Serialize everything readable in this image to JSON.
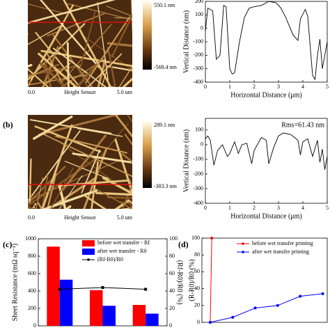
{
  "afm_images": [
    {
      "max_label": "550.1 nm",
      "min_label": "-568.4 nm",
      "x_start": "0.0",
      "x_label": "Height Sensor",
      "x_end": "5.0 um"
    },
    {
      "panel_label": "(b)",
      "max_label": "289.1 nm",
      "min_label": "-383.3 nm",
      "x_start": "0.0",
      "x_label": "Height Sensor",
      "x_end": "5.0 um"
    }
  ],
  "chart_data": [
    {
      "type": "line",
      "xlabel": "Horizontal Distance (μm)",
      "ylabel": "Vertical Distance (nm)",
      "xlim": [
        0,
        5
      ],
      "xticks": [
        0,
        1,
        2,
        3,
        4,
        5
      ],
      "ylim": [
        -400,
        200
      ],
      "yticks": [
        -400,
        -300,
        -200,
        -100,
        0,
        100,
        200
      ],
      "series": [
        {
          "color": "#000000",
          "x": [
            0,
            0.1,
            0.3,
            0.45,
            0.6,
            0.75,
            0.85,
            1.0,
            1.1,
            1.2,
            1.4,
            1.6,
            1.8,
            2.0,
            2.3,
            2.6,
            2.9,
            3.1,
            3.3,
            3.6,
            3.8,
            3.9,
            4.1,
            4.2,
            4.4,
            4.5,
            4.6,
            4.7,
            4.8,
            4.9,
            5.0
          ],
          "values": [
            -20,
            150,
            130,
            -230,
            -200,
            170,
            160,
            -300,
            -340,
            -330,
            -100,
            80,
            150,
            160,
            170,
            200,
            190,
            150,
            80,
            -50,
            -90,
            70,
            140,
            90,
            -350,
            -380,
            -200,
            -80,
            -300,
            -200,
            -100
          ]
        }
      ]
    },
    {
      "type": "line",
      "xlabel": "Horizontal Distance (μm)",
      "ylabel": "Vertical Distance (nm)",
      "annotation": "Rms=61.43 nm",
      "xlim": [
        0,
        5
      ],
      "xticks": [
        0,
        1,
        2,
        3,
        4,
        5
      ],
      "ylim": [
        -400,
        180
      ],
      "yticks": [
        -400,
        -300,
        -200,
        -100,
        0,
        100
      ],
      "series": [
        {
          "color": "#000000",
          "x": [
            0,
            0.1,
            0.2,
            0.35,
            0.5,
            0.7,
            0.9,
            1.0,
            1.2,
            1.35,
            1.5,
            1.7,
            1.9,
            2.0,
            2.3,
            2.5,
            2.6,
            2.8,
            3.0,
            3.2,
            3.5,
            3.8,
            3.9,
            4.0,
            4.2,
            4.4,
            4.6,
            4.7,
            4.8,
            4.9,
            5.0
          ],
          "values": [
            40,
            60,
            30,
            -140,
            -40,
            0,
            -80,
            -60,
            20,
            -60,
            0,
            10,
            -130,
            -40,
            50,
            30,
            -130,
            -20,
            60,
            80,
            70,
            30,
            -70,
            20,
            40,
            -80,
            30,
            -120,
            -30,
            -170,
            -80
          ]
        }
      ]
    },
    {
      "type": "bar",
      "panel_label": "(c)",
      "ylabel": "Sheet Resistance (mΩ sq⁻¹)",
      "y2label": "(Rf-R0)/R0 (%)",
      "categories": [
        null,
        null,
        null
      ],
      "ylim": [
        0,
        1000
      ],
      "yticks": [
        0,
        200,
        400,
        600,
        800,
        1000
      ],
      "y2lim": [
        0,
        100
      ],
      "y2ticks": [
        0,
        20,
        40,
        60,
        80,
        100
      ],
      "series": [
        {
          "name": "before wet transfer - Rf",
          "color": "#ff0000",
          "values": [
            910,
            410,
            240
          ]
        },
        {
          "name": "after wet transfer - R0",
          "color": "#0000ff",
          "values": [
            530,
            230,
            140
          ]
        },
        {
          "name": "(Rf-R0)/R0",
          "color": "#000000",
          "values": [
            42,
            44,
            42
          ],
          "axis": "y2",
          "type": "line"
        }
      ]
    },
    {
      "type": "line",
      "panel_label": "(d)",
      "ylabel": "(R-R0)/R0 (%)",
      "xlim": [
        -0.37,
        5.2
      ],
      "ylim": [
        0,
        100
      ],
      "yticks": [
        0,
        20,
        40,
        60,
        80,
        100
      ],
      "series": [
        {
          "name": "before wet transfer printing",
          "color": "#ff0000",
          "x": [
            0,
            0.07
          ],
          "values": [
            0,
            100
          ]
        },
        {
          "name": "after wet transfer printing",
          "color": "#0000ff",
          "x": [
            0,
            1,
            2,
            3,
            4,
            5
          ],
          "values": [
            0,
            6,
            17,
            20,
            31,
            34
          ]
        }
      ]
    }
  ]
}
